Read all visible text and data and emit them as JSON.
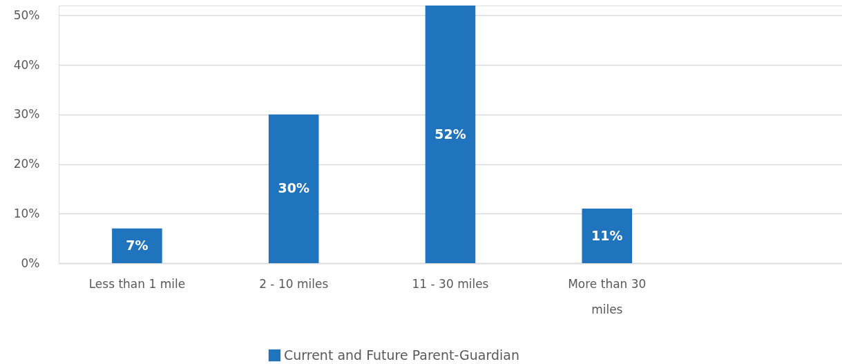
{
  "chart_data": {
    "type": "bar",
    "categories": [
      "Less than 1 mile",
      "2 - 10 miles",
      "11 - 30 miles",
      "More than 30 miles",
      null
    ],
    "series": [
      {
        "name": "Current and Future Parent-Guardian",
        "color": "#1f74bd",
        "values": [
          7,
          30,
          52,
          11,
          null
        ],
        "value_labels": [
          "7%",
          "30%",
          "52%",
          "11%",
          null
        ]
      }
    ],
    "ylim": [
      0,
      52
    ],
    "yticks": [
      {
        "value": 0,
        "label": "0%"
      },
      {
        "value": 10,
        "label": "10%"
      },
      {
        "value": 20,
        "label": "20%"
      },
      {
        "value": 30,
        "label": "30%"
      },
      {
        "value": 40,
        "label": "40%"
      },
      {
        "value": 50,
        "label": "50%"
      }
    ],
    "grid": "y",
    "legend": "bottom"
  }
}
